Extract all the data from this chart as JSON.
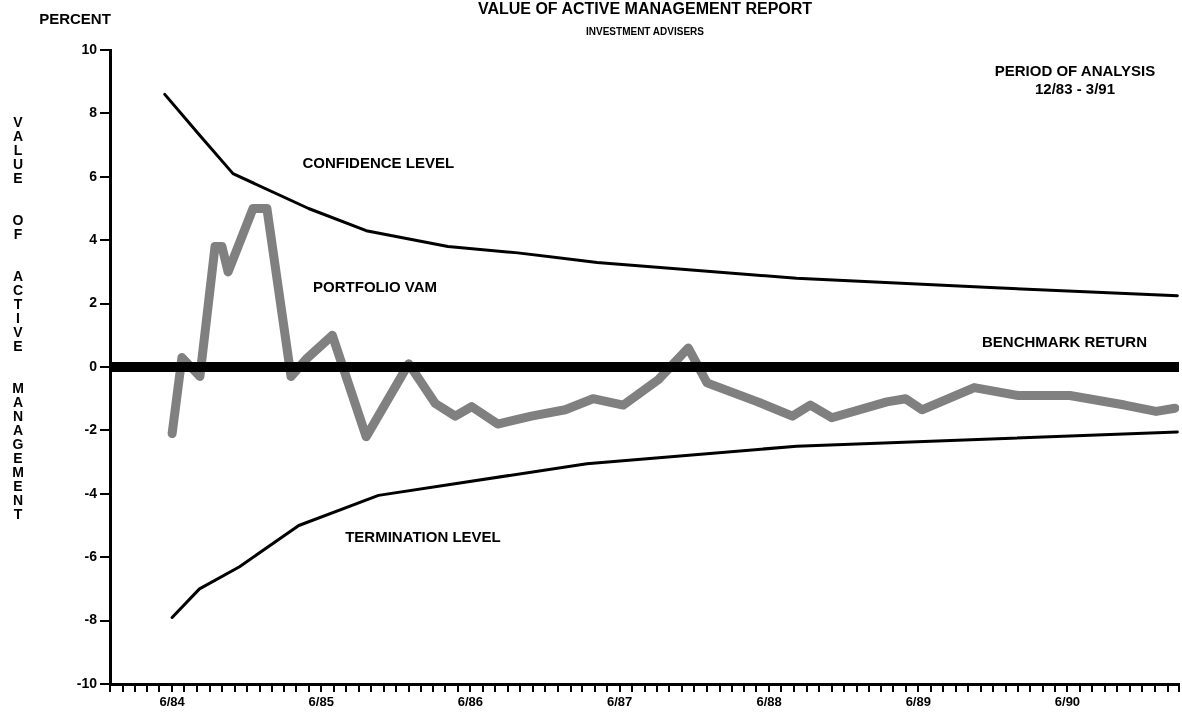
{
  "chart_data": {
    "type": "line",
    "title": "VALUE OF ACTIVE MANAGEMENT REPORT",
    "subtitle": "INVESTMENT ADVISERS",
    "ylabel": "VALUE OF ACTIVE MANAGEMENT",
    "annotations": [
      "PERCENT",
      "PERIOD OF ANALYSIS\n12/83 - 3/91"
    ],
    "series": [
      {
        "name": "CONFIDENCE LEVEL",
        "color": "#000000",
        "x": [
          "1984-05-14",
          "1984-08-08",
          "1984-10-28",
          "1985-05-01",
          "1985-09-19",
          "1986-04-07",
          "1986-09-25",
          "1987-04-07",
          "1988-08-07",
          "1989-12-07",
          "1991-02-25"
        ],
        "values": [
          8.6,
          7.3,
          6.1,
          5.0,
          4.3,
          3.8,
          3.6,
          3.3,
          2.8,
          2.5,
          2.25
        ]
      },
      {
        "name": "PORTFOLIO VAM",
        "color": "#808080",
        "x": [
          "1984-06-01",
          "1984-06-25",
          "1984-08-08",
          "1984-09-14",
          "1984-10-01",
          "1984-10-16",
          "1984-12-16",
          "1985-01-19",
          "1985-03-19",
          "1985-04-25",
          "1985-06-28",
          "1985-09-19",
          "1986-01-01",
          "1986-03-07",
          "1986-04-25",
          "1986-06-04",
          "1986-08-07",
          "1986-10-28",
          "1987-01-19",
          "1987-03-28",
          "1987-06-10",
          "1987-09-04",
          "1987-11-16",
          "1988-01-01",
          "1988-05-04",
          "1988-07-28",
          "1988-09-10",
          "1988-11-01",
          "1989-03-16",
          "1989-05-01",
          "1989-06-10",
          "1989-10-16",
          "1990-02-01",
          "1990-06-07",
          "1990-10-19",
          "1991-01-04",
          "1991-02-19"
        ],
        "values": [
          -2.1,
          0.3,
          -0.3,
          3.8,
          3.8,
          3.0,
          5.0,
          5.0,
          -0.3,
          0.25,
          1.0,
          -2.2,
          0.1,
          -1.15,
          -1.55,
          -1.25,
          -1.8,
          -1.55,
          -1.35,
          -1.0,
          -1.2,
          -0.4,
          0.6,
          -0.5,
          -1.1,
          -1.55,
          -1.2,
          -1.6,
          -1.1,
          -1.0,
          -1.35,
          -0.65,
          -0.9,
          -0.9,
          -1.2,
          -1.4,
          -1.3
        ]
      },
      {
        "name": "TERMINATION LEVEL",
        "color": "#000000",
        "x": [
          "1984-06-01",
          "1984-08-07",
          "1984-11-13",
          "1985-04-07",
          "1985-10-19",
          "1987-03-13",
          "1988-08-07",
          "1991-02-25"
        ],
        "values": [
          -7.9,
          -7.0,
          -6.3,
          -5.0,
          -4.05,
          -3.05,
          -2.5,
          -2.05
        ]
      }
    ],
    "ref_lines": [
      {
        "axis": "y",
        "value": 0,
        "label": "BENCHMARK RETURN",
        "color": "#000000"
      }
    ],
    "xlim": [
      "1984-01",
      "1991-03"
    ],
    "xticks": [
      {
        "value": "1984-01",
        "label": null
      },
      {
        "value": "1984-02",
        "label": null
      },
      {
        "value": "1984-03",
        "label": null
      },
      {
        "value": "1984-04",
        "label": null
      },
      {
        "value": "1984-05",
        "label": null
      },
      {
        "value": "1984-06",
        "label": "6/84"
      },
      {
        "value": "1984-07",
        "label": null
      },
      {
        "value": "1984-08",
        "label": null
      },
      {
        "value": "1984-09",
        "label": null
      },
      {
        "value": "1984-10",
        "label": null
      },
      {
        "value": "1984-11",
        "label": null
      },
      {
        "value": "1984-12",
        "label": null
      },
      {
        "value": "1985-01",
        "label": null
      },
      {
        "value": "1985-02",
        "label": null
      },
      {
        "value": "1985-03",
        "label": null
      },
      {
        "value": "1985-04",
        "label": null
      },
      {
        "value": "1985-05",
        "label": null
      },
      {
        "value": "1985-06",
        "label": "6/85"
      },
      {
        "value": "1985-07",
        "label": null
      },
      {
        "value": "1985-08",
        "label": null
      },
      {
        "value": "1985-09",
        "label": null
      },
      {
        "value": "1985-10",
        "label": null
      },
      {
        "value": "1985-11",
        "label": null
      },
      {
        "value": "1985-12",
        "label": null
      },
      {
        "value": "1986-01",
        "label": null
      },
      {
        "value": "1986-02",
        "label": null
      },
      {
        "value": "1986-03",
        "label": null
      },
      {
        "value": "1986-04",
        "label": null
      },
      {
        "value": "1986-05",
        "label": null
      },
      {
        "value": "1986-06",
        "label": "6/86"
      },
      {
        "value": "1986-07",
        "label": null
      },
      {
        "value": "1986-08",
        "label": null
      },
      {
        "value": "1986-09",
        "label": null
      },
      {
        "value": "1986-10",
        "label": null
      },
      {
        "value": "1986-11",
        "label": null
      },
      {
        "value": "1986-12",
        "label": null
      },
      {
        "value": "1987-01",
        "label": null
      },
      {
        "value": "1987-02",
        "label": null
      },
      {
        "value": "1987-03",
        "label": null
      },
      {
        "value": "1987-04",
        "label": null
      },
      {
        "value": "1987-05",
        "label": null
      },
      {
        "value": "1987-06",
        "label": "6/87"
      },
      {
        "value": "1987-07",
        "label": null
      },
      {
        "value": "1987-08",
        "label": null
      },
      {
        "value": "1987-09",
        "label": null
      },
      {
        "value": "1987-10",
        "label": null
      },
      {
        "value": "1987-11",
        "label": null
      },
      {
        "value": "1987-12",
        "label": null
      },
      {
        "value": "1988-01",
        "label": null
      },
      {
        "value": "1988-02",
        "label": null
      },
      {
        "value": "1988-03",
        "label": null
      },
      {
        "value": "1988-04",
        "label": null
      },
      {
        "value": "1988-05",
        "label": null
      },
      {
        "value": "1988-06",
        "label": "6/88"
      },
      {
        "value": "1988-07",
        "label": null
      },
      {
        "value": "1988-08",
        "label": null
      },
      {
        "value": "1988-09",
        "label": null
      },
      {
        "value": "1988-10",
        "label": null
      },
      {
        "value": "1988-11",
        "label": null
      },
      {
        "value": "1988-12",
        "label": null
      },
      {
        "value": "1989-01",
        "label": null
      },
      {
        "value": "1989-02",
        "label": null
      },
      {
        "value": "1989-03",
        "label": null
      },
      {
        "value": "1989-04",
        "label": null
      },
      {
        "value": "1989-05",
        "label": null
      },
      {
        "value": "1989-06",
        "label": "6/89"
      },
      {
        "value": "1989-07",
        "label": null
      },
      {
        "value": "1989-08",
        "label": null
      },
      {
        "value": "1989-09",
        "label": null
      },
      {
        "value": "1989-10",
        "label": null
      },
      {
        "value": "1989-11",
        "label": null
      },
      {
        "value": "1989-12",
        "label": null
      },
      {
        "value": "1990-01",
        "label": null
      },
      {
        "value": "1990-02",
        "label": null
      },
      {
        "value": "1990-03",
        "label": null
      },
      {
        "value": "1990-04",
        "label": null
      },
      {
        "value": "1990-05",
        "label": null
      },
      {
        "value": "1990-06",
        "label": "6/90"
      },
      {
        "value": "1990-07",
        "label": null
      },
      {
        "value": "1990-08",
        "label": null
      },
      {
        "value": "1990-09",
        "label": null
      },
      {
        "value": "1990-10",
        "label": null
      },
      {
        "value": "1990-11",
        "label": null
      },
      {
        "value": "1990-12",
        "label": null
      },
      {
        "value": "1991-01",
        "label": null
      },
      {
        "value": "1991-02",
        "label": null
      },
      {
        "value": "1991-03",
        "label": null
      }
    ],
    "ylim": [
      -10,
      10
    ],
    "yticks": [
      -10,
      -8,
      -6,
      -4,
      -2,
      0,
      2,
      4,
      6,
      8,
      10
    ],
    "grid": false,
    "legend": false,
    "marker": "none",
    "line_style": "solid"
  }
}
